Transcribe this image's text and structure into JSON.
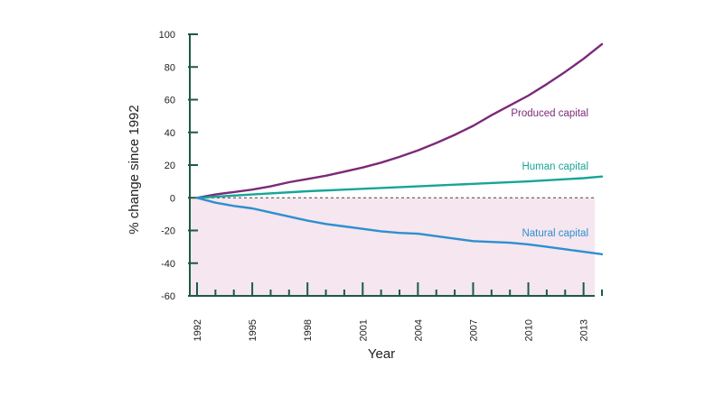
{
  "chart_data": {
    "type": "line",
    "title": "",
    "xlabel": "Year",
    "ylabel": "% change since 1992",
    "xlim": [
      1992,
      2014
    ],
    "ylim": [
      -60,
      100
    ],
    "x_ticks": [
      1992,
      1995,
      1998,
      2001,
      2004,
      2007,
      2010,
      2013
    ],
    "y_ticks": [
      -60,
      -40,
      -20,
      0,
      20,
      40,
      60,
      80,
      100
    ],
    "grid": false,
    "legend": "labels-inline",
    "baseline": {
      "value": 0,
      "style": "dashed"
    },
    "negative_region_color": "#f5e6ef",
    "axis_color": "#1d5a44",
    "series": [
      {
        "name": "Produced capital",
        "color": "#7b2a78",
        "x": [
          1992,
          1993,
          1994,
          1995,
          1996,
          1997,
          1998,
          1999,
          2000,
          2001,
          2002,
          2003,
          2004,
          2005,
          2006,
          2007,
          2008,
          2009,
          2010,
          2011,
          2012,
          2013,
          2014
        ],
        "y": [
          0,
          2,
          3.5,
          5,
          7,
          9.5,
          11.5,
          13.5,
          16,
          18.5,
          21.5,
          25,
          29,
          33.5,
          38.5,
          44,
          50.5,
          56.5,
          62.5,
          69.5,
          77,
          85,
          94
        ]
      },
      {
        "name": "Human capital",
        "color": "#17a596",
        "x": [
          1992,
          1995,
          1998,
          2001,
          2004,
          2007,
          2010,
          2013,
          2014
        ],
        "y": [
          0,
          2,
          4,
          5.5,
          7,
          8.5,
          10,
          12,
          13
        ]
      },
      {
        "name": "Natural capital",
        "color": "#2e8fcf",
        "x": [
          1992,
          1993,
          1994,
          1995,
          1996,
          1997,
          1998,
          1999,
          2000,
          2001,
          2002,
          2003,
          2004,
          2005,
          2006,
          2007,
          2008,
          2009,
          2010,
          2011,
          2012,
          2013,
          2014
        ],
        "y": [
          0,
          -3,
          -5,
          -6.5,
          -9,
          -11.5,
          -14,
          -16,
          -17.5,
          -19,
          -20.5,
          -21.5,
          -22,
          -23.5,
          -25,
          -26.5,
          -27,
          -27.5,
          -28.5,
          -30,
          -31.5,
          -33,
          -34.5
        ]
      }
    ]
  }
}
